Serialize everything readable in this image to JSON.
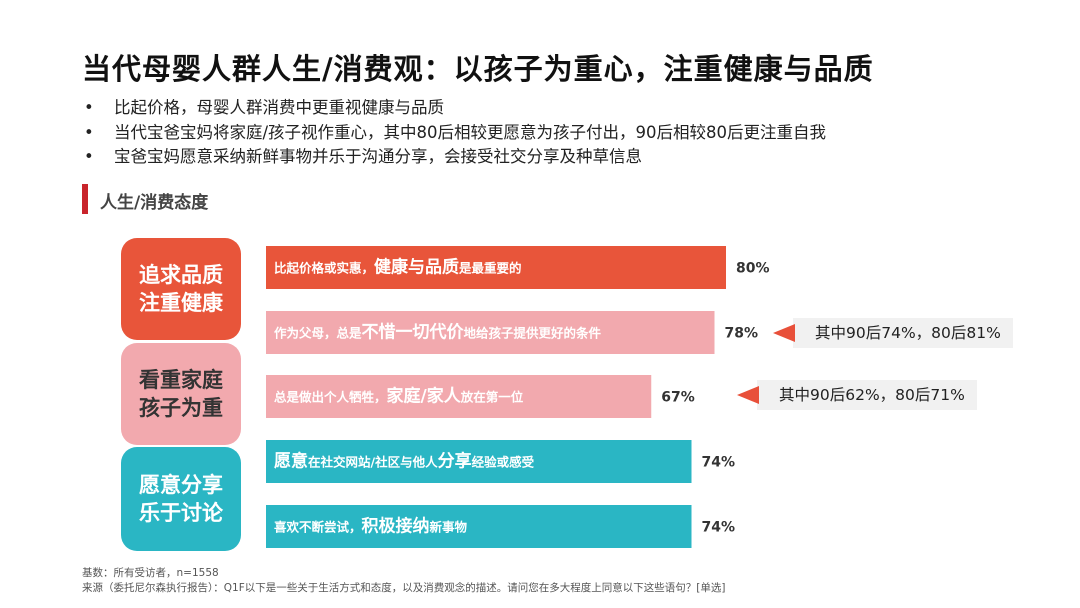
{
  "page": {
    "title": "当代母婴人群人生/消费观：以孩子为重心，注重健康与品质",
    "bullets": [
      "比起价格，母婴人群消费中更重视健康与品质",
      "当代宝爸宝妈将家庭/孩子视作重心，其中80后相较更愿意为孩子付出，90后相较80后更注重自我",
      "宝爸宝妈愿意采纳新鲜事物并乐于沟通分享，会接受社交分享及种草信息"
    ],
    "bullet_symbol": "•",
    "section_title": "人生/消费态度"
  },
  "categories": [
    {
      "label": "追求品质\n注重健康",
      "color": "#e8553a",
      "text_color": "#ffffff"
    },
    {
      "label": "看重家庭\n孩子为重",
      "color": "#f2a9ae",
      "text_color": "#333333"
    },
    {
      "label": "愿意分享\n乐于讨论",
      "color": "#2ab6c4",
      "text_color": "#ffffff"
    }
  ],
  "chart_data": {
    "type": "bar",
    "orientation": "horizontal",
    "x_unit": "%",
    "xlim": [
      0,
      100
    ],
    "bars": [
      {
        "group": 0,
        "value": 80,
        "value_label": "80%",
        "color": "#e8553a",
        "parts": [
          {
            "text": "比起价格或实惠，",
            "big": false
          },
          {
            "text": "健康与品质",
            "big": true
          },
          {
            "text": "是最重要的",
            "big": false
          }
        ]
      },
      {
        "group": 1,
        "value": 78,
        "value_label": "78%",
        "color": "#f2a9ae",
        "parts": [
          {
            "text": "作为父母，总是",
            "big": false
          },
          {
            "text": "不惜一切代价",
            "big": true
          },
          {
            "text": "地给孩子提供更好的条件",
            "big": false
          }
        ]
      },
      {
        "group": 1,
        "value": 67,
        "value_label": "67%",
        "color": "#f2a9ae",
        "parts": [
          {
            "text": "总是做出个人牺牲，",
            "big": false
          },
          {
            "text": "家庭/家人",
            "big": true
          },
          {
            "text": "放在第一位",
            "big": false
          }
        ]
      },
      {
        "group": 2,
        "value": 74,
        "value_label": "74%",
        "color": "#2ab6c4",
        "parts": [
          {
            "text": "愿意",
            "big": true
          },
          {
            "text": "在社交网站/社区与他人",
            "big": false
          },
          {
            "text": "分享",
            "big": true
          },
          {
            "text": "经验或感受",
            "big": false
          }
        ]
      },
      {
        "group": 2,
        "value": 74,
        "value_label": "74%",
        "color": "#2ab6c4",
        "parts": [
          {
            "text": "喜欢不断尝试，",
            "big": false
          },
          {
            "text": "积极接纳",
            "big": true
          },
          {
            "text": "新事物",
            "big": false
          }
        ]
      }
    ]
  },
  "callouts": [
    {
      "bar_index": 1,
      "text": "其中90后74%，80后81%"
    },
    {
      "bar_index": 2,
      "text": "其中90后62%，80后71%"
    }
  ],
  "footer": {
    "base": "基数：所有受访者，n=1558",
    "source": "来源（委托尼尔森执行报告）：Q1F以下是一些关于生活方式和态度，以及消费观念的描述。请问您在多大程度上同意以下这些语句？[单选]"
  }
}
